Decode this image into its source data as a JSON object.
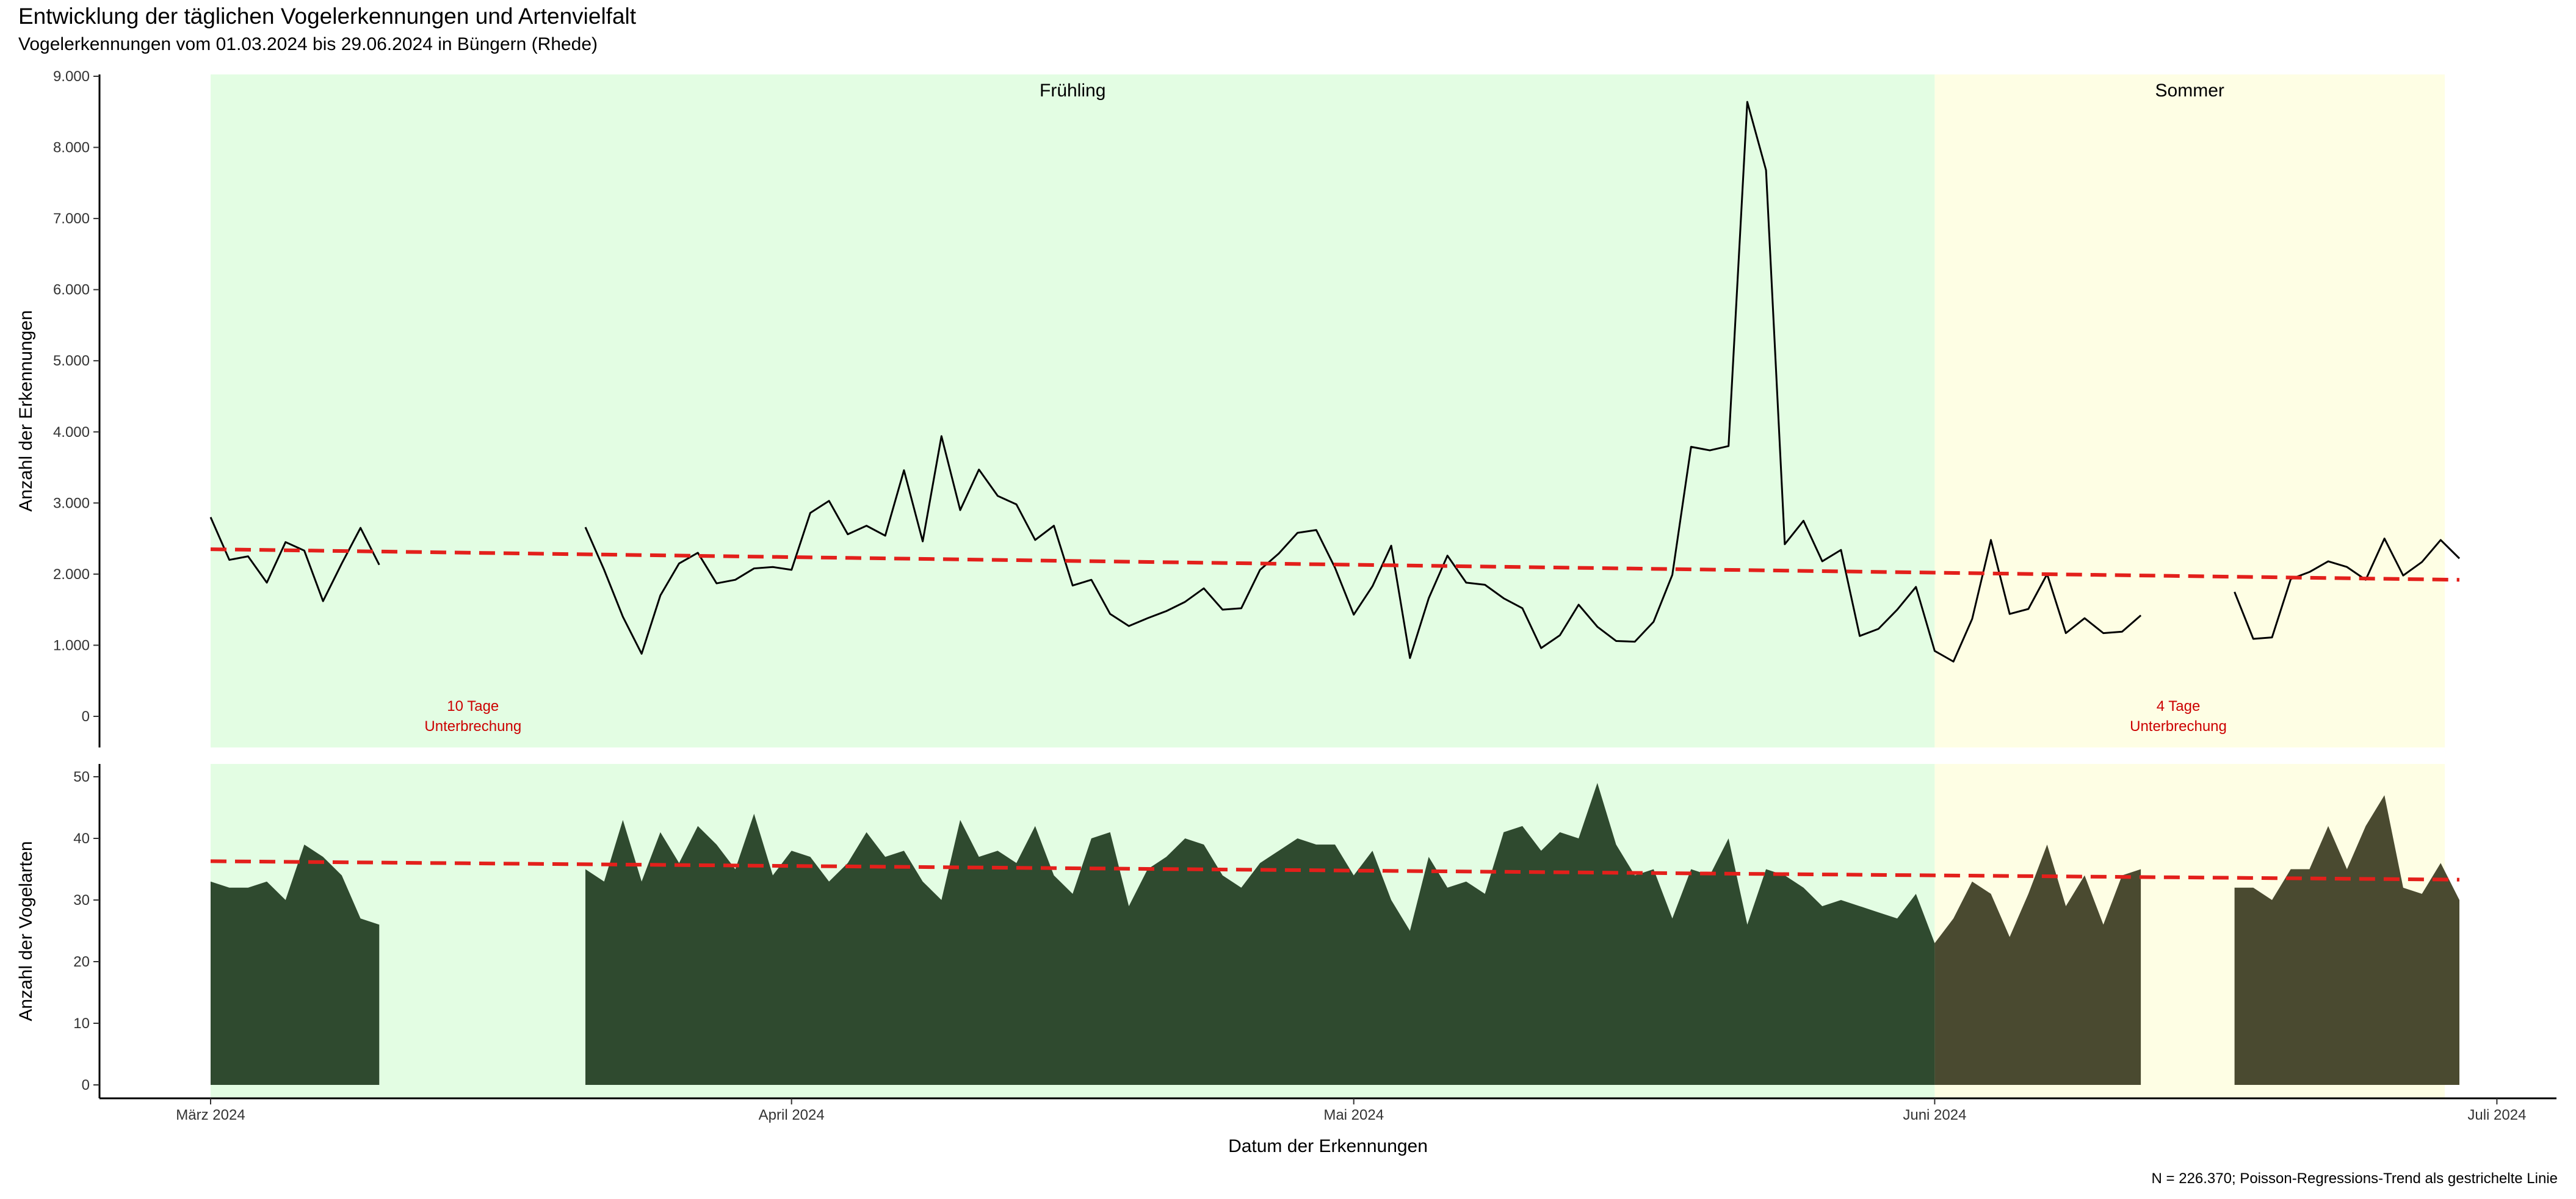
{
  "title": "Entwicklung der täglichen Vogelerkennungen und Artenvielfalt",
  "subtitle": "Vogelerkennungen vom 01.03.2024 bis 29.06.2024 in Büngern (Rhede)",
  "caption": "N = 226.370; Poisson-Regressions-Trend als gestrichelte Linie",
  "colors": {
    "spring_band": "#e3fde3",
    "summer_band": "#fefee4",
    "area_spring": "#2f4a2f",
    "area_summer": "#4a4a30",
    "trend": "#e3201b",
    "annotation": "#cc0000",
    "line": "#000000"
  },
  "chart_data": [
    {
      "type": "line",
      "name": "detections",
      "ylabel": "Anzahl der Erkennungen",
      "xlabel": "",
      "ylim": [
        -250,
        9100
      ],
      "yticks": [
        0,
        1000,
        2000,
        3000,
        4000,
        5000,
        6000,
        7000,
        8000,
        9000
      ],
      "ytick_labels": [
        "0",
        "1.000",
        "2.000",
        "3.000",
        "4.000",
        "5.000",
        "6.000",
        "7.000",
        "8.000",
        "9.000"
      ],
      "seasons": [
        {
          "label": "Frühling",
          "from": "2024-03-01",
          "to": "2024-06-01"
        },
        {
          "label": "Sommer",
          "from": "2024-06-01",
          "to": "2024-06-29"
        }
      ],
      "gaps": [
        {
          "text1": "10 Tage",
          "text2": "Unterbrechung",
          "x": "2024-03-15"
        },
        {
          "text1": "4 Tage",
          "text2": "Unterbrechung",
          "x": "2024-06-14"
        }
      ],
      "trend": {
        "start": [
          "2024-03-01",
          2350
        ],
        "end": [
          "2024-06-29",
          1920
        ]
      },
      "segments": [
        {
          "x_start": "2024-03-01",
          "values": [
            2800,
            2200,
            2250,
            1880,
            2450,
            2330,
            1620,
            2150,
            2650,
            2130
          ]
        },
        {
          "x_start": "2024-03-21",
          "values": [
            2660,
            2060,
            1400,
            880,
            1700,
            2150,
            2300,
            1870,
            1920,
            2080,
            2100,
            2060,
            2860,
            3030,
            2560,
            2680,
            2540,
            3460,
            2460,
            3940,
            2900,
            3470,
            3100,
            2980,
            2480,
            2680,
            1840,
            1920,
            1440,
            1270,
            1380,
            1480,
            1610,
            1800,
            1500,
            1520,
            2060,
            2290,
            2580,
            2620,
            2090,
            1430,
            1830,
            2400,
            820,
            1660,
            2260,
            1880,
            1850,
            1660,
            1520,
            960,
            1140,
            1570,
            1260,
            1060,
            1050,
            1330,
            1990,
            3790,
            3740,
            3800,
            8640,
            7680,
            2420,
            2750,
            2180,
            2340,
            1130,
            1230,
            1500,
            1820,
            920,
            770,
            1370,
            2480,
            1440,
            1510,
            2000,
            1170,
            1380,
            1170,
            1190,
            1420
          ]
        },
        {
          "x_start": "2024-06-17",
          "values": [
            1750,
            1090,
            1110,
            1930,
            2030,
            2180,
            2100,
            1920,
            2500,
            1980,
            2170,
            2480,
            2220
          ]
        }
      ]
    },
    {
      "type": "area",
      "name": "species",
      "ylabel": "Anzahl der Vogelarten",
      "xlabel": "Datum der Erkennungen",
      "ylim": [
        -2.5,
        51.5
      ],
      "yticks": [
        0,
        10,
        20,
        30,
        40,
        50
      ],
      "ytick_labels": [
        "0",
        "10",
        "20",
        "30",
        "40",
        "50"
      ],
      "xticks": [
        "2024-03-01",
        "2024-04-01",
        "2024-05-01",
        "2024-06-01",
        "2024-07-01"
      ],
      "xtick_labels": [
        "März 2024",
        "April 2024",
        "Mai 2024",
        "Juni 2024",
        "Juli 2024"
      ],
      "trend": {
        "start": [
          "2024-03-01",
          36.3
        ],
        "end": [
          "2024-06-29",
          33.3
        ]
      },
      "segments": [
        {
          "x_start": "2024-03-01",
          "values": [
            33,
            32,
            32,
            33,
            30,
            39,
            37,
            34,
            27,
            26
          ]
        },
        {
          "x_start": "2024-03-21",
          "values": [
            35,
            33,
            43,
            33,
            41,
            36,
            42,
            39,
            35,
            44,
            34,
            38,
            37,
            33,
            36,
            41,
            37,
            38,
            33,
            30,
            43,
            37,
            38,
            36,
            42,
            34,
            31,
            40,
            41,
            29,
            35,
            37,
            40,
            39,
            34,
            32,
            36,
            38,
            40,
            39,
            39,
            34,
            38,
            30,
            25,
            37,
            32,
            33,
            31,
            41,
            42,
            38,
            41,
            40,
            49,
            39,
            34,
            35,
            27,
            35,
            34,
            40,
            26,
            35,
            34,
            32,
            29,
            30,
            29,
            28,
            27,
            31,
            23,
            27,
            33,
            31,
            24,
            31,
            39,
            29,
            34,
            26,
            34,
            35
          ]
        },
        {
          "x_start": "2024-06-17",
          "values": [
            32,
            32,
            30,
            35,
            35,
            42,
            35,
            42,
            47,
            32,
            31,
            36,
            30
          ]
        }
      ]
    }
  ]
}
